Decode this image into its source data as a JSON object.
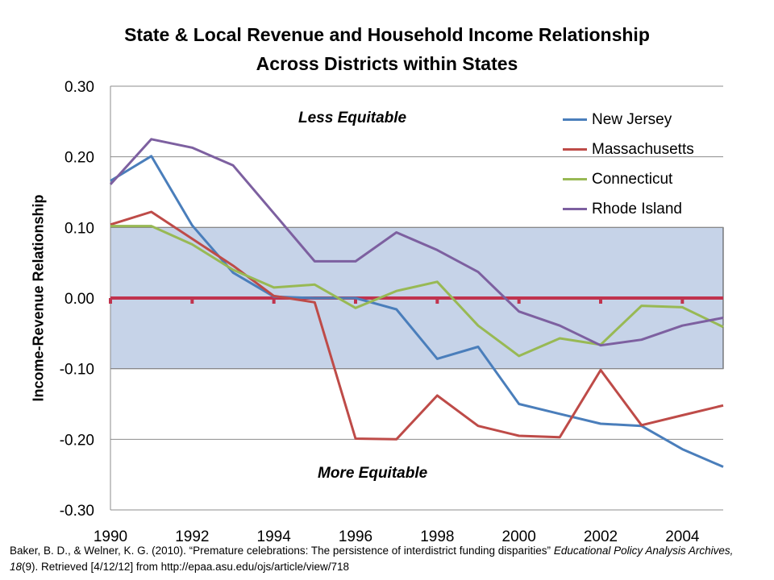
{
  "title_line1": "State & Local Revenue and Household Income Relationship",
  "title_line2": "Across Districts within States",
  "annotations": {
    "less": "Less Equitable",
    "more": "More Equitable"
  },
  "citation": {
    "part1": "Baker, B. D., & Welner, K. G. (2010). “Premature celebrations: The persistence of interdistrict funding disparities” ",
    "journal": "Educational Policy Analysis Archives, 18",
    "part2": "(9). Retrieved [4/12/12] from http://epaa.asu.edu/ojs/article/view/718"
  },
  "colors": {
    "shade": "#c6d3e8",
    "zero_line": "#c0334e",
    "grid": "#8c8c8c"
  },
  "chart_data": {
    "type": "line",
    "ylabel": "Income-Revenue Relationship",
    "xlabel": "",
    "xlim": [
      1990,
      2005
    ],
    "ylim": [
      -0.3,
      0.3
    ],
    "x_ticks": [
      1990,
      1992,
      1994,
      1996,
      1998,
      2000,
      2002,
      2004
    ],
    "x_tick_labels": [
      "1990",
      "1992",
      "1994",
      "1996",
      "1998",
      "2000",
      "2002",
      "2004"
    ],
    "y_ticks": [
      0.3,
      0.2,
      0.1,
      0.0,
      -0.1,
      -0.2,
      -0.3
    ],
    "y_tick_labels": [
      "0.30",
      "0.20",
      "0.10",
      "0.00",
      "-0.10",
      "-0.20",
      "-0.30"
    ],
    "shaded_band": [
      -0.1,
      0.1
    ],
    "reference_line": 0.0,
    "legend_position": "top-right",
    "series": [
      {
        "name": "New Jersey",
        "color": "#4a7ebb",
        "x": [
          1990,
          1991,
          1992,
          1993,
          1994,
          1995,
          1996,
          1997,
          1998,
          1999,
          2000,
          2001,
          2002,
          2003,
          2004,
          2005
        ],
        "values": [
          0.166,
          0.201,
          0.103,
          0.036,
          0.002,
          0.0,
          0.0,
          -0.016,
          -0.086,
          -0.069,
          -0.15,
          -0.164,
          -0.178,
          -0.181,
          -0.214,
          -0.239
        ]
      },
      {
        "name": "Massachusetts",
        "color": "#be4b48",
        "x": [
          1990,
          1991,
          1992,
          1993,
          1994,
          1995,
          1996,
          1997,
          1998,
          1999,
          2000,
          2001,
          2002,
          2003,
          2004,
          2005
        ],
        "values": [
          0.104,
          0.122,
          0.084,
          0.046,
          0.003,
          -0.006,
          -0.199,
          -0.2,
          -0.138,
          -0.181,
          -0.195,
          -0.197,
          -0.102,
          -0.18,
          -0.166,
          -0.152
        ]
      },
      {
        "name": "Connecticut",
        "color": "#98b954",
        "x": [
          1990,
          1991,
          1992,
          1993,
          1994,
          1995,
          1996,
          1997,
          1998,
          1999,
          2000,
          2001,
          2002,
          2003,
          2004,
          2005
        ],
        "values": [
          0.102,
          0.102,
          0.076,
          0.04,
          0.015,
          0.019,
          -0.014,
          0.01,
          0.023,
          -0.039,
          -0.082,
          -0.057,
          -0.066,
          -0.011,
          -0.013,
          -0.041
        ]
      },
      {
        "name": "Rhode Island",
        "color": "#7d60a0",
        "x": [
          1990,
          1991,
          1992,
          1993,
          1994,
          1995,
          1996,
          1997,
          1998,
          1999,
          2000,
          2001,
          2002,
          2003,
          2004,
          2005
        ],
        "values": [
          0.161,
          0.225,
          0.213,
          0.188,
          0.12,
          0.052,
          0.052,
          0.093,
          0.068,
          0.037,
          -0.019,
          -0.039,
          -0.067,
          -0.059,
          -0.039,
          -0.028
        ]
      }
    ]
  }
}
